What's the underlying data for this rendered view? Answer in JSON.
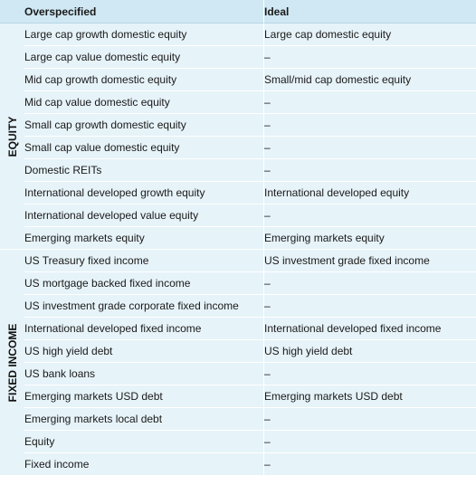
{
  "header": {
    "col1": "Overspecified",
    "col2": "Ideal"
  },
  "groups": [
    {
      "label": "EQUITY",
      "rows": [
        [
          "Large cap growth domestic equity",
          "Large cap domestic equity"
        ],
        [
          "Large cap value domestic equity",
          "–"
        ],
        [
          "Mid cap growth domestic equity",
          "Small/mid cap domestic equity"
        ],
        [
          "Mid cap value domestic equity",
          "–"
        ],
        [
          "Small cap growth domestic equity",
          "–"
        ],
        [
          "Small cap value domestic equity",
          "–"
        ],
        [
          "Domestic REITs",
          "–"
        ],
        [
          "International developed growth equity",
          "International developed equity"
        ],
        [
          "International developed value equity",
          "–"
        ],
        [
          "Emerging  markets equity",
          "Emerging markets equity"
        ]
      ]
    },
    {
      "label": "FIXED INCOME",
      "rows": [
        [
          "US Treasury fixed income",
          "US investment grade fixed income"
        ],
        [
          "US mortgage backed fixed income",
          "–"
        ],
        [
          "US investment grade corporate fixed income",
          "–"
        ],
        [
          "International developed fixed income",
          "International developed fixed income"
        ],
        [
          "US high yield debt",
          "US high yield debt"
        ],
        [
          "US bank loans",
          "–"
        ],
        [
          "Emerging markets USD debt",
          "Emerging markets USD debt"
        ],
        [
          "Emerging markets local debt",
          "–"
        ],
        [
          "Equity",
          "–"
        ],
        [
          "Fixed income",
          "–"
        ]
      ]
    }
  ]
}
